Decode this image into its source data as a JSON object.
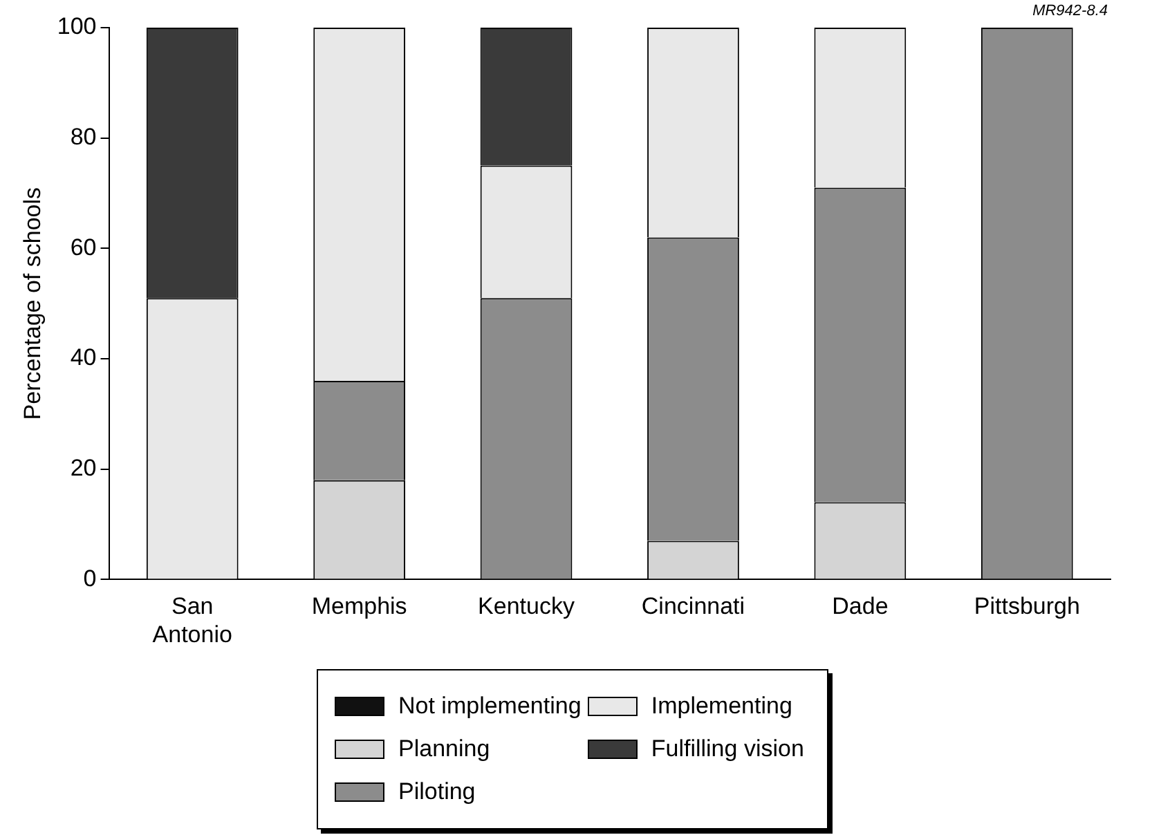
{
  "chart_data": {
    "type": "bar",
    "stacked": true,
    "ylabel": "Percentage of schools",
    "annotations": [
      "MR942-8.4"
    ],
    "categories": [
      "San\nAntonio",
      "Memphis",
      "Kentucky",
      "Cincinnati",
      "Dade",
      "Pittsburgh"
    ],
    "series": [
      {
        "name": "Not implementing",
        "color": "#111111",
        "values": [
          0,
          0,
          0,
          0,
          0,
          0
        ]
      },
      {
        "name": "Planning",
        "color": "#d4d4d4",
        "values": [
          0,
          18,
          0,
          7,
          14,
          0
        ]
      },
      {
        "name": "Piloting",
        "color": "#8c8c8c",
        "values": [
          0,
          18,
          51,
          55,
          57,
          100
        ]
      },
      {
        "name": "Implementing",
        "color": "#e8e8e8",
        "values": [
          51,
          64,
          24,
          38,
          29,
          0
        ]
      },
      {
        "name": "Fulfilling vision",
        "color": "#3a3a3a",
        "values": [
          49,
          0,
          25,
          0,
          0,
          0
        ]
      }
    ],
    "ylim": [
      0,
      100
    ],
    "yticks": [
      0,
      20,
      40,
      60,
      80,
      100
    ],
    "grid": false,
    "legend": "bottom"
  }
}
